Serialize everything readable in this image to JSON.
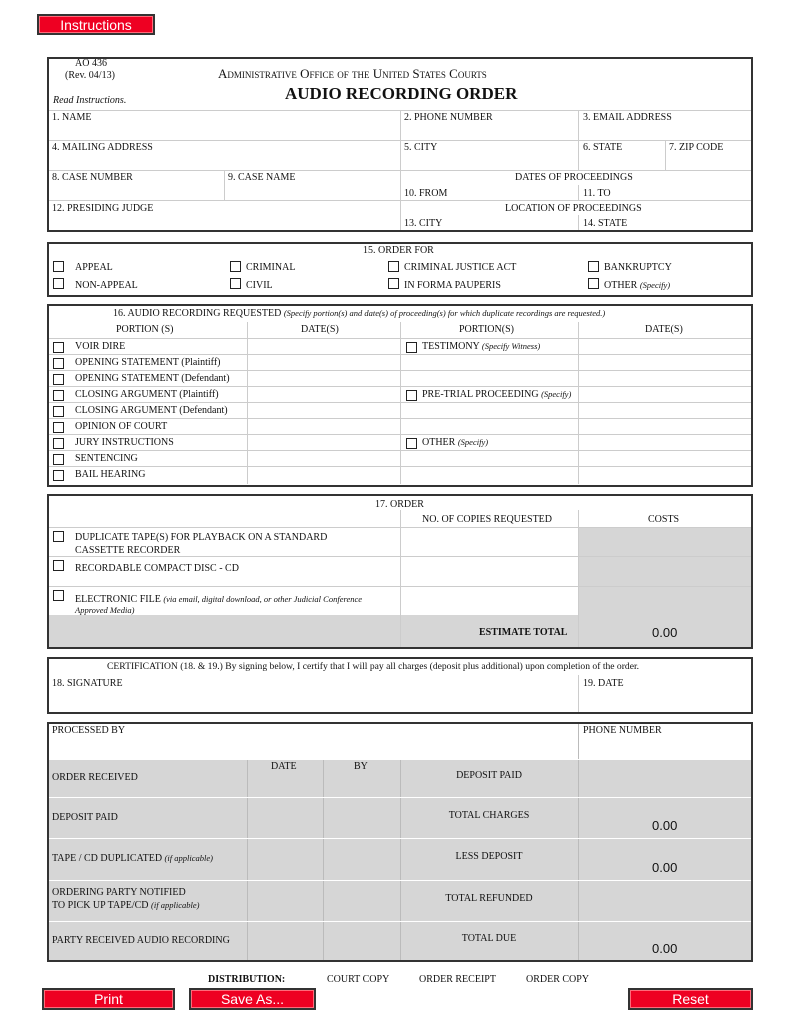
{
  "buttons": {
    "instructions": "Instructions",
    "print": "Print",
    "save_as": "Save As...",
    "reset": "Reset"
  },
  "header": {
    "form_no": "AO 436",
    "rev": "(Rev. 04/13)",
    "read": "Read Instructions.",
    "agency": "Administrative Office of the United States Courts",
    "title": "AUDIO RECORDING ORDER"
  },
  "fields": {
    "name": "1. NAME",
    "phone": "2. PHONE NUMBER",
    "email": "3. EMAIL ADDRESS",
    "mailing": "4. MAILING ADDRESS",
    "city": "5. CITY",
    "state": "6. STATE",
    "zip": "7. ZIP CODE",
    "case_number": "8. CASE NUMBER",
    "case_name": "9. CASE NAME",
    "dates_heading": "DATES OF PROCEEDINGS",
    "from": "10. FROM",
    "to": "11. TO",
    "judge": "12. PRESIDING JUDGE",
    "location_heading": "LOCATION OF PROCEEDINGS",
    "loc_city": "13. CITY",
    "loc_state": "14. STATE"
  },
  "order_for": {
    "title": "15. ORDER FOR",
    "options": [
      "APPEAL",
      "CRIMINAL",
      "CRIMINAL JUSTICE ACT",
      "BANKRUPTCY",
      "NON-APPEAL",
      "CIVIL",
      "IN FORMA PAUPERIS",
      "OTHER"
    ],
    "other_note": "(Specify)"
  },
  "requested": {
    "title": "16. AUDIO RECORDING REQUESTED",
    "note": "(Specify portion(s) and date(s) of proceeding(s) for which duplicate recordings are requested.)",
    "col_portion1": "PORTION (S)",
    "col_dates1": "DATE(S)",
    "col_portion2": "PORTION(S)",
    "col_dates2": "DATE(S)",
    "left": [
      "VOIR DIRE",
      "OPENING STATEMENT (Plaintiff)",
      "OPENING STATEMENT (Defendant)",
      "CLOSING ARGUMENT (Plaintiff)",
      "CLOSING ARGUMENT (Defendant)",
      "OPINION OF COURT",
      "JURY INSTRUCTIONS",
      "SENTENCING",
      "BAIL HEARING"
    ],
    "right": [
      {
        "label": "TESTIMONY",
        "note": "(Specify Witness)"
      },
      {
        "label": "PRE-TRIAL PROCEEDING",
        "note": "(Specify)"
      },
      {
        "label": "OTHER",
        "note": "(Specify)"
      }
    ]
  },
  "order": {
    "title": "17. ORDER",
    "col_copies": "NO. OF COPIES REQUESTED",
    "col_costs": "COSTS",
    "items": [
      {
        "label": "DUPLICATE TAPE(S) FOR PLAYBACK ON A STANDARD",
        "label2": "CASSETTE RECORDER"
      },
      {
        "label": "RECORDABLE COMPACT DISC - CD"
      },
      {
        "label": "ELECTRONIC FILE",
        "note": "(via email, digital download, or other Judicial Conference",
        "note2": "Approved Media)"
      }
    ],
    "estimate_label": "ESTIMATE TOTAL",
    "estimate_value": "0.00"
  },
  "certification": {
    "text": "CERTIFICATION (18. & 19.)  By signing below, I certify that I will pay all charges (deposit plus additional) upon completion of the order.",
    "signature": "18. SIGNATURE",
    "date": "19. DATE"
  },
  "office": {
    "processed_by": "PROCESSED BY",
    "phone": "PHONE NUMBER",
    "date": "DATE",
    "by": "BY",
    "rows": [
      {
        "label": "ORDER RECEIVED",
        "right": "DEPOSIT PAID",
        "value": ""
      },
      {
        "label": "DEPOSIT PAID",
        "right": "TOTAL CHARGES",
        "value": "0.00"
      },
      {
        "label": "TAPE / CD DUPLICATED",
        "note": "(if applicable)",
        "right": "LESS DEPOSIT",
        "value": "0.00"
      },
      {
        "label": "ORDERING PARTY NOTIFIED",
        "label2": "TO PICK UP TAPE/CD",
        "note": "(if applicable)",
        "right": "TOTAL REFUNDED",
        "value": ""
      },
      {
        "label": "PARTY RECEIVED AUDIO RECORDING",
        "right": "TOTAL DUE",
        "value": "0.00"
      }
    ]
  },
  "distribution": {
    "label": "DISTRIBUTION:",
    "copies": [
      "COURT COPY",
      "ORDER RECEIPT",
      "ORDER COPY"
    ]
  }
}
